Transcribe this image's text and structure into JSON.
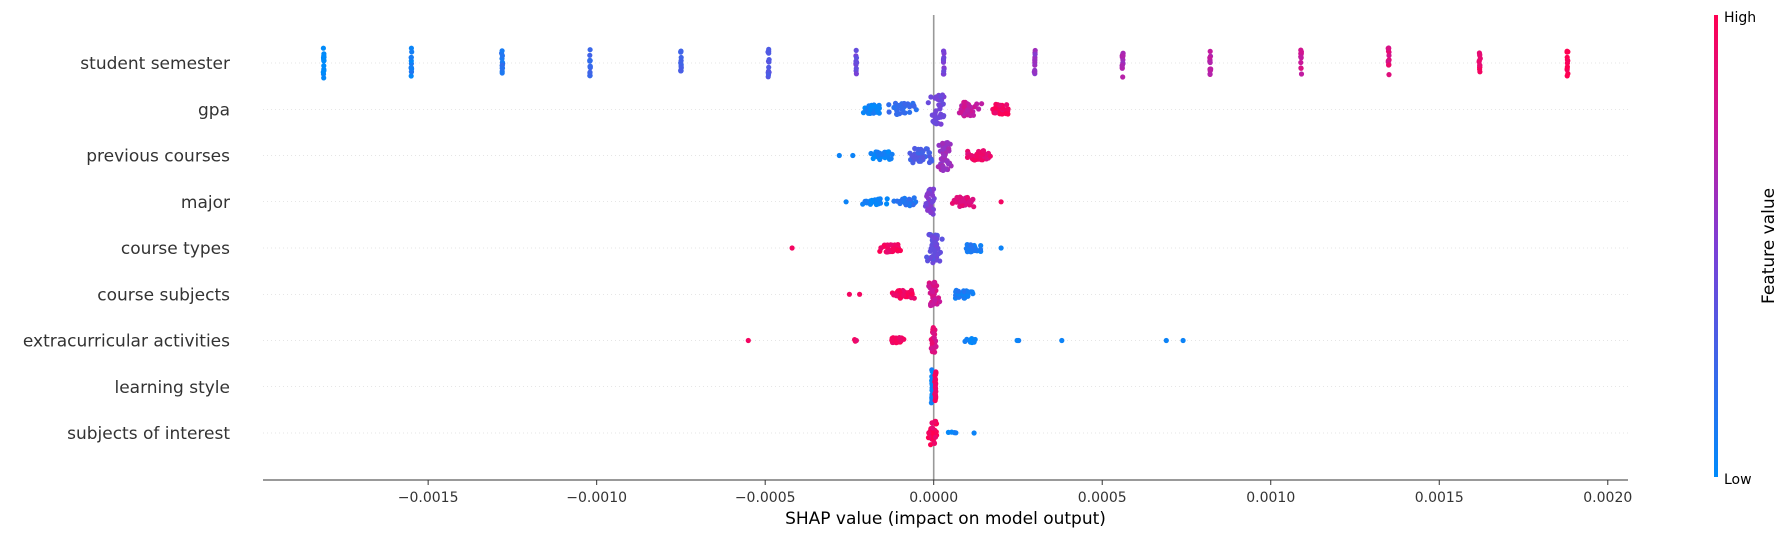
{
  "chart_data": {
    "type": "scatter",
    "subtype": "shap-beeswarm",
    "xlabel": "SHAP value (impact on model output)",
    "xlim": [
      -0.00199,
      0.00206
    ],
    "xticks": [
      -0.0015,
      -0.001,
      -0.0005,
      0.0,
      0.0005,
      0.001,
      0.0015,
      0.002
    ],
    "xtick_labels": [
      "−0.0015",
      "−0.0010",
      "−0.0005",
      "0.0000",
      "0.0005",
      "0.0010",
      "0.0015",
      "0.0020"
    ],
    "zero_line": true,
    "row_gridlines": "dotted",
    "colorbar": {
      "label": "Feature value",
      "high_label": "High",
      "low_label": "Low",
      "low_color": "#008bfb",
      "high_color": "#ff0052"
    },
    "features": [
      {
        "name": "student semester",
        "clusters": [
          {
            "x": -0.00181,
            "v": 0.0,
            "n": 14,
            "w": 2.5e-06,
            "h": 30
          },
          {
            "x": -0.00155,
            "v": 0.071,
            "n": 14,
            "w": 2.5e-06,
            "h": 30
          },
          {
            "x": -0.00128,
            "v": 0.143,
            "n": 12,
            "w": 2.5e-06,
            "h": 26
          },
          {
            "x": -0.00102,
            "v": 0.214,
            "n": 12,
            "w": 2.5e-06,
            "h": 28
          },
          {
            "x": -0.00075,
            "v": 0.286,
            "n": 12,
            "w": 2.5e-06,
            "h": 26
          },
          {
            "x": -0.00049,
            "v": 0.357,
            "n": 13,
            "w": 2.5e-06,
            "h": 28
          },
          {
            "x": -0.00023,
            "v": 0.429,
            "n": 12,
            "w": 2.5e-06,
            "h": 26
          },
          {
            "x": 3e-05,
            "v": 0.5,
            "n": 12,
            "w": 2.5e-06,
            "h": 24
          },
          {
            "x": 0.0003,
            "v": 0.571,
            "n": 12,
            "w": 2.5e-06,
            "h": 26
          },
          {
            "x": 0.00056,
            "v": 0.643,
            "n": 14,
            "w": 2.5e-06,
            "h": 30
          },
          {
            "x": 0.00082,
            "v": 0.714,
            "n": 12,
            "w": 2.5e-06,
            "h": 26
          },
          {
            "x": 0.00109,
            "v": 0.786,
            "n": 12,
            "w": 2.5e-06,
            "h": 28
          },
          {
            "x": 0.00135,
            "v": 0.857,
            "n": 14,
            "w": 2.5e-06,
            "h": 30
          },
          {
            "x": 0.00162,
            "v": 0.929,
            "n": 12,
            "w": 2.5e-06,
            "h": 26
          },
          {
            "x": 0.00188,
            "v": 1.0,
            "n": 12,
            "w": 2.5e-06,
            "h": 26
          }
        ]
      },
      {
        "name": "gpa",
        "clusters": [
          {
            "x": -0.00018,
            "v": 0.05,
            "n": 40,
            "w": 4e-05,
            "h": 10
          },
          {
            "x": -9e-05,
            "v": 0.2,
            "n": 30,
            "w": 5e-05,
            "h": 12
          },
          {
            "x": 1e-05,
            "v": 0.45,
            "n": 40,
            "w": 3e-05,
            "h": 30
          },
          {
            "x": 0.0001,
            "v": 0.75,
            "n": 45,
            "w": 5e-05,
            "h": 14
          },
          {
            "x": 0.0002,
            "v": 0.95,
            "n": 35,
            "w": 4e-05,
            "h": 10
          }
        ]
      },
      {
        "name": "previous courses",
        "clusters": [
          {
            "x": -0.00028,
            "v": 0.05,
            "n": 1,
            "w": 0.0,
            "h": 0
          },
          {
            "x": -0.00024,
            "v": 0.05,
            "n": 1,
            "w": 0.0,
            "h": 0
          },
          {
            "x": -0.00015,
            "v": 0.05,
            "n": 30,
            "w": 5e-05,
            "h": 8
          },
          {
            "x": -4e-05,
            "v": 0.3,
            "n": 40,
            "w": 5e-05,
            "h": 16
          },
          {
            "x": 3e-05,
            "v": 0.6,
            "n": 45,
            "w": 3e-05,
            "h": 30
          },
          {
            "x": 0.00013,
            "v": 0.9,
            "n": 35,
            "w": 6e-05,
            "h": 10
          }
        ]
      },
      {
        "name": "major",
        "clusters": [
          {
            "x": -0.00026,
            "v": 0.05,
            "n": 1,
            "w": 0.0,
            "h": 0
          },
          {
            "x": -0.00018,
            "v": 0.05,
            "n": 25,
            "w": 5e-05,
            "h": 6
          },
          {
            "x": -8e-05,
            "v": 0.15,
            "n": 30,
            "w": 5e-05,
            "h": 8
          },
          {
            "x": -1e-05,
            "v": 0.5,
            "n": 40,
            "w": 2e-05,
            "h": 26
          },
          {
            "x": 9e-05,
            "v": 0.85,
            "n": 35,
            "w": 5e-05,
            "h": 10
          },
          {
            "x": 0.0002,
            "v": 0.95,
            "n": 1,
            "w": 0.0,
            "h": 0
          }
        ]
      },
      {
        "name": "course types",
        "clusters": [
          {
            "x": -0.00042,
            "v": 0.95,
            "n": 1,
            "w": 0.0,
            "h": 0
          },
          {
            "x": -0.00013,
            "v": 0.95,
            "n": 35,
            "w": 5e-05,
            "h": 8
          },
          {
            "x": 0.0,
            "v": 0.4,
            "n": 45,
            "w": 3e-05,
            "h": 30
          },
          {
            "x": 0.00012,
            "v": 0.1,
            "n": 30,
            "w": 4e-05,
            "h": 8
          },
          {
            "x": 0.0002,
            "v": 0.05,
            "n": 1,
            "w": 0.0,
            "h": 0
          }
        ]
      },
      {
        "name": "course subjects",
        "clusters": [
          {
            "x": -0.00025,
            "v": 0.95,
            "n": 1,
            "w": 0.0,
            "h": 0
          },
          {
            "x": -0.00022,
            "v": 0.95,
            "n": 1,
            "w": 0.0,
            "h": 0
          },
          {
            "x": -9e-05,
            "v": 0.95,
            "n": 35,
            "w": 4e-05,
            "h": 8
          },
          {
            "x": 0.0,
            "v": 0.8,
            "n": 40,
            "w": 2e-05,
            "h": 24
          },
          {
            "x": 9e-05,
            "v": 0.1,
            "n": 30,
            "w": 4e-05,
            "h": 8
          }
        ]
      },
      {
        "name": "extracurricular activities",
        "clusters": [
          {
            "x": -0.00055,
            "v": 0.95,
            "n": 1,
            "w": 0.0,
            "h": 0
          },
          {
            "x": -0.00023,
            "v": 0.95,
            "n": 3,
            "w": 1e-05,
            "h": 2
          },
          {
            "x": -0.00011,
            "v": 0.95,
            "n": 30,
            "w": 3e-05,
            "h": 6
          },
          {
            "x": 0.0,
            "v": 0.85,
            "n": 30,
            "w": 1e-05,
            "h": 26
          },
          {
            "x": 0.00011,
            "v": 0.05,
            "n": 14,
            "w": 3e-05,
            "h": 4
          },
          {
            "x": 0.00025,
            "v": 0.05,
            "n": 2,
            "w": 5e-06,
            "h": 0
          },
          {
            "x": 0.00038,
            "v": 0.05,
            "n": 1,
            "w": 0.0,
            "h": 0
          },
          {
            "x": 0.00069,
            "v": 0.05,
            "n": 1,
            "w": 0.0,
            "h": 0
          },
          {
            "x": 0.00074,
            "v": 0.05,
            "n": 1,
            "w": 0.0,
            "h": 0
          }
        ]
      },
      {
        "name": "learning style",
        "clusters": [
          {
            "x": -5e-06,
            "v": 0.05,
            "n": 25,
            "w": 3e-06,
            "h": 34
          },
          {
            "x": 5e-06,
            "v": 0.95,
            "n": 22,
            "w": 3e-06,
            "h": 30
          }
        ]
      },
      {
        "name": "subjects of interest",
        "clusters": [
          {
            "x": 0.0,
            "v": 0.95,
            "n": 30,
            "w": 2e-05,
            "h": 24
          },
          {
            "x": 5e-05,
            "v": 0.05,
            "n": 4,
            "w": 2e-05,
            "h": 2
          },
          {
            "x": 0.00012,
            "v": 0.05,
            "n": 1,
            "w": 0.0,
            "h": 0
          }
        ]
      }
    ]
  }
}
